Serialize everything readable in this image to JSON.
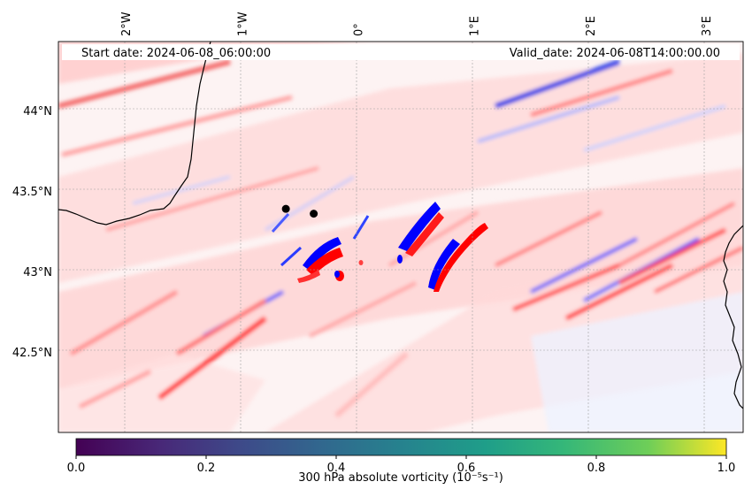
{
  "chart_data": {
    "type": "heatmap",
    "title": "",
    "start_label": "Start date: 2024-06-08_06:00:00",
    "valid_label": "Valid_date: 2024-06-08T14:00:00.00",
    "field": "300 hPa absolute vorticity",
    "x_ticks": [
      {
        "lon": -2,
        "label": "2°W"
      },
      {
        "lon": -1,
        "label": "1°W"
      },
      {
        "lon": 0,
        "label": "0°"
      },
      {
        "lon": 1,
        "label": "1°E"
      },
      {
        "lon": 2,
        "label": "2°E"
      },
      {
        "lon": 3,
        "label": "3°E"
      }
    ],
    "y_ticks": [
      {
        "lat": 44.0,
        "label": "44°N"
      },
      {
        "lat": 43.5,
        "label": "43.5°N"
      },
      {
        "lat": 43.0,
        "label": "43°N"
      },
      {
        "lat": 42.5,
        "label": "42.5°N"
      }
    ],
    "lon_range": [
      -2.58,
      3.32
    ],
    "lat_range": [
      42.0,
      44.43
    ],
    "points": [
      {
        "lon": -0.62,
        "lat": 43.39
      },
      {
        "lon": -0.38,
        "lat": 43.36
      }
    ],
    "colorbar": {
      "label": "300 hPa absolute vorticity (10⁻⁵s⁻¹)",
      "ticks": [
        "0.0",
        "0.2",
        "0.4",
        "0.6",
        "0.8",
        "1.0"
      ],
      "range": [
        0,
        1
      ],
      "colormap": "viridis"
    },
    "colors": {
      "positive": "#ff0000",
      "negative": "#0000ff",
      "background": "#ffffff"
    }
  }
}
